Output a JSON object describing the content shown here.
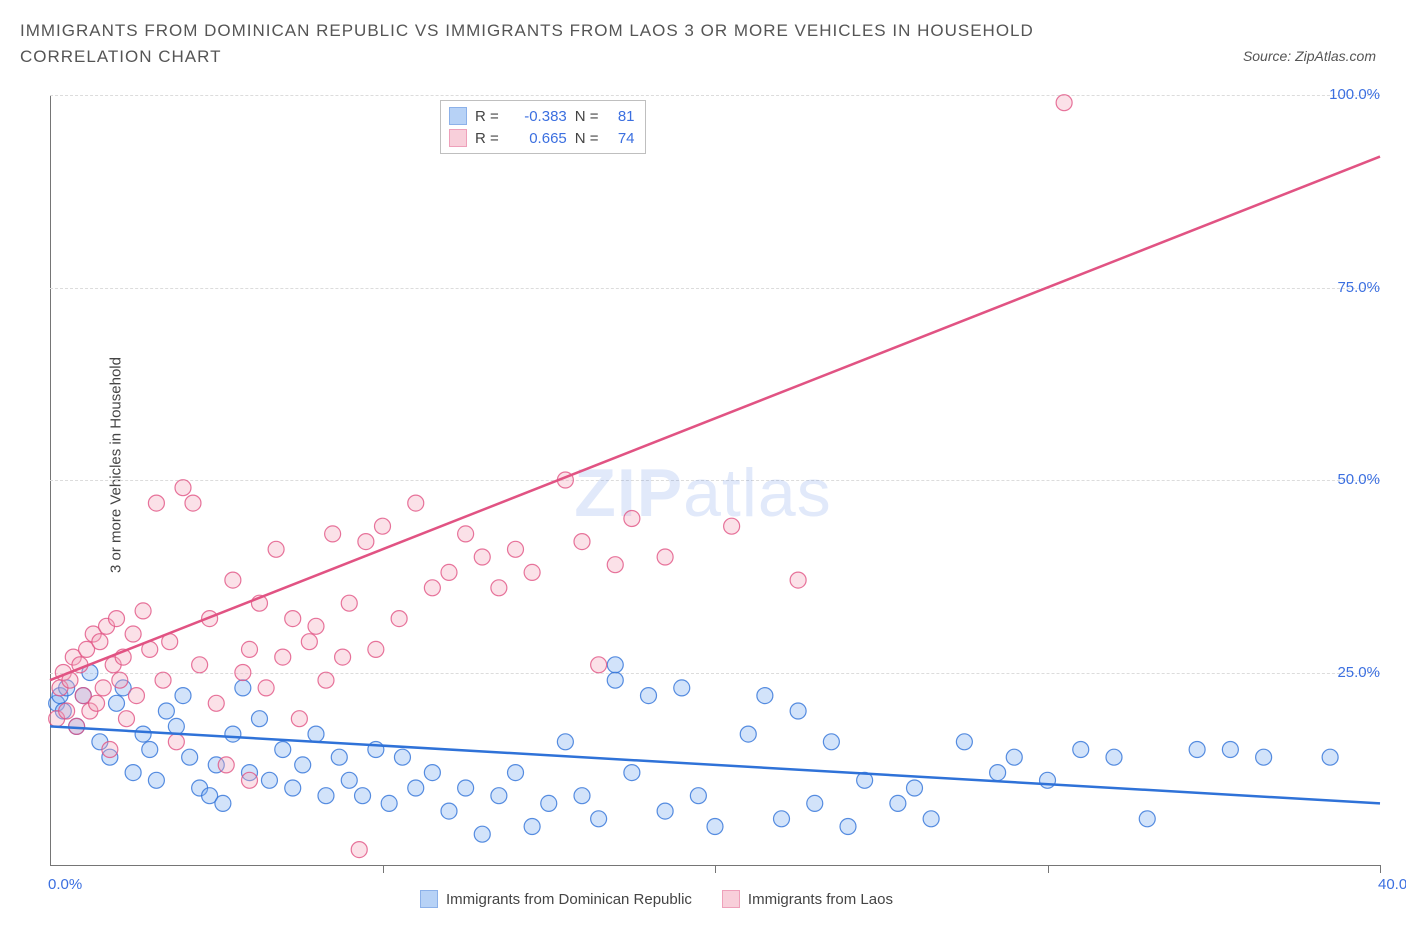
{
  "title": "IMMIGRANTS FROM DOMINICAN REPUBLIC VS IMMIGRANTS FROM LAOS 3 OR MORE VEHICLES IN HOUSEHOLD CORRELATION CHART",
  "source": "Source: ZipAtlas.com",
  "y_axis_label": "3 or more Vehicles in Household",
  "watermark": {
    "bold": "ZIP",
    "rest": "atlas"
  },
  "chart": {
    "type": "scatter",
    "xlim": [
      0,
      40
    ],
    "ylim": [
      0,
      100
    ],
    "y_ticks": [
      25,
      50,
      75,
      100
    ],
    "y_tick_labels": [
      "25.0%",
      "50.0%",
      "75.0%",
      "100.0%"
    ],
    "x_ticks": [
      0,
      10,
      20,
      30,
      40
    ],
    "x_tick_labels": [
      "0.0%",
      "",
      "",
      "",
      "40.0%"
    ],
    "grid_color": "#dcdcdc",
    "axis_color": "#757575",
    "background": "#ffffff",
    "point_radius": 8,
    "series": [
      {
        "name": "Immigrants from Dominican Republic",
        "fill": "#7eaef0",
        "stroke": "#2f72d8",
        "regression": {
          "x1": 0,
          "y1": 18,
          "x2": 40,
          "y2": 8,
          "color": "#2f72d8",
          "width": 2.5
        },
        "R": -0.383,
        "N": 81,
        "points": [
          [
            0.2,
            21
          ],
          [
            0.3,
            22
          ],
          [
            0.4,
            20
          ],
          [
            0.5,
            23
          ],
          [
            0.8,
            18
          ],
          [
            1.0,
            22
          ],
          [
            1.2,
            25
          ],
          [
            1.5,
            16
          ],
          [
            1.8,
            14
          ],
          [
            2.0,
            21
          ],
          [
            2.2,
            23
          ],
          [
            2.5,
            12
          ],
          [
            2.8,
            17
          ],
          [
            3.0,
            15
          ],
          [
            3.2,
            11
          ],
          [
            3.5,
            20
          ],
          [
            3.8,
            18
          ],
          [
            4.0,
            22
          ],
          [
            4.2,
            14
          ],
          [
            4.5,
            10
          ],
          [
            4.8,
            9
          ],
          [
            5.0,
            13
          ],
          [
            5.2,
            8
          ],
          [
            5.5,
            17
          ],
          [
            5.8,
            23
          ],
          [
            6.0,
            12
          ],
          [
            6.3,
            19
          ],
          [
            6.6,
            11
          ],
          [
            7.0,
            15
          ],
          [
            7.3,
            10
          ],
          [
            7.6,
            13
          ],
          [
            8.0,
            17
          ],
          [
            8.3,
            9
          ],
          [
            8.7,
            14
          ],
          [
            9.0,
            11
          ],
          [
            9.4,
            9
          ],
          [
            9.8,
            15
          ],
          [
            10.2,
            8
          ],
          [
            10.6,
            14
          ],
          [
            11.0,
            10
          ],
          [
            11.5,
            12
          ],
          [
            12.0,
            7
          ],
          [
            12.5,
            10
          ],
          [
            13.0,
            4
          ],
          [
            13.5,
            9
          ],
          [
            14.0,
            12
          ],
          [
            14.5,
            5
          ],
          [
            15.0,
            8
          ],
          [
            15.5,
            16
          ],
          [
            16.0,
            9
          ],
          [
            16.5,
            6
          ],
          [
            17.0,
            24
          ],
          [
            17.0,
            26
          ],
          [
            17.5,
            12
          ],
          [
            18.0,
            22
          ],
          [
            18.5,
            7
          ],
          [
            19.0,
            23
          ],
          [
            19.5,
            9
          ],
          [
            20.0,
            5
          ],
          [
            21.0,
            17
          ],
          [
            21.5,
            22
          ],
          [
            22.0,
            6
          ],
          [
            22.5,
            20
          ],
          [
            23.0,
            8
          ],
          [
            23.5,
            16
          ],
          [
            24.0,
            5
          ],
          [
            24.5,
            11
          ],
          [
            25.5,
            8
          ],
          [
            26.0,
            10
          ],
          [
            26.5,
            6
          ],
          [
            27.5,
            16
          ],
          [
            28.5,
            12
          ],
          [
            29.0,
            14
          ],
          [
            30.0,
            11
          ],
          [
            31.0,
            15
          ],
          [
            32.0,
            14
          ],
          [
            33.0,
            6
          ],
          [
            34.5,
            15
          ],
          [
            35.5,
            15
          ],
          [
            36.5,
            14
          ],
          [
            38.5,
            14
          ]
        ]
      },
      {
        "name": "Immigrants from Laos",
        "fill": "#f4a8bd",
        "stroke": "#e15383",
        "regression": {
          "x1": 0,
          "y1": 24,
          "x2": 40,
          "y2": 92,
          "color": "#e15383",
          "width": 2.5
        },
        "R": 0.665,
        "N": 74,
        "points": [
          [
            0.2,
            19
          ],
          [
            0.3,
            23
          ],
          [
            0.4,
            25
          ],
          [
            0.5,
            20
          ],
          [
            0.6,
            24
          ],
          [
            0.7,
            27
          ],
          [
            0.8,
            18
          ],
          [
            0.9,
            26
          ],
          [
            1.0,
            22
          ],
          [
            1.1,
            28
          ],
          [
            1.2,
            20
          ],
          [
            1.3,
            30
          ],
          [
            1.4,
            21
          ],
          [
            1.5,
            29
          ],
          [
            1.6,
            23
          ],
          [
            1.7,
            31
          ],
          [
            1.8,
            15
          ],
          [
            1.9,
            26
          ],
          [
            2.0,
            32
          ],
          [
            2.1,
            24
          ],
          [
            2.2,
            27
          ],
          [
            2.3,
            19
          ],
          [
            2.5,
            30
          ],
          [
            2.6,
            22
          ],
          [
            2.8,
            33
          ],
          [
            3.0,
            28
          ],
          [
            3.2,
            47
          ],
          [
            3.4,
            24
          ],
          [
            3.6,
            29
          ],
          [
            3.8,
            16
          ],
          [
            4.0,
            49
          ],
          [
            4.3,
            47
          ],
          [
            4.5,
            26
          ],
          [
            4.8,
            32
          ],
          [
            5.0,
            21
          ],
          [
            5.3,
            13
          ],
          [
            5.5,
            37
          ],
          [
            5.8,
            25
          ],
          [
            6.0,
            28
          ],
          [
            6.0,
            11
          ],
          [
            6.3,
            34
          ],
          [
            6.5,
            23
          ],
          [
            6.8,
            41
          ],
          [
            7.0,
            27
          ],
          [
            7.3,
            32
          ],
          [
            7.5,
            19
          ],
          [
            7.8,
            29
          ],
          [
            8.0,
            31
          ],
          [
            8.3,
            24
          ],
          [
            8.5,
            43
          ],
          [
            8.8,
            27
          ],
          [
            9.0,
            34
          ],
          [
            9.3,
            2
          ],
          [
            9.5,
            42
          ],
          [
            9.8,
            28
          ],
          [
            10.0,
            44
          ],
          [
            10.5,
            32
          ],
          [
            11.0,
            47
          ],
          [
            11.5,
            36
          ],
          [
            12.0,
            38
          ],
          [
            12.5,
            43
          ],
          [
            13.0,
            40
          ],
          [
            13.5,
            36
          ],
          [
            14.0,
            41
          ],
          [
            14.5,
            38
          ],
          [
            15.5,
            50
          ],
          [
            16.0,
            42
          ],
          [
            16.5,
            26
          ],
          [
            17.0,
            39
          ],
          [
            17.5,
            45
          ],
          [
            18.5,
            40
          ],
          [
            20.5,
            44
          ],
          [
            22.5,
            37
          ],
          [
            30.5,
            99
          ]
        ]
      }
    ]
  },
  "stats_box": {
    "rows": [
      {
        "swatch_fill": "#7eaef0",
        "swatch_stroke": "#2f72d8",
        "R_label": "R =",
        "R": "-0.383",
        "N_label": "N =",
        "N": "81"
      },
      {
        "swatch_fill": "#f4a8bd",
        "swatch_stroke": "#e15383",
        "R_label": "R =",
        "R": "0.665",
        "N_label": "N =",
        "N": "74"
      }
    ]
  },
  "bottom_legend": [
    {
      "fill": "#7eaef0",
      "stroke": "#2f72d8",
      "label": "Immigrants from Dominican Republic"
    },
    {
      "fill": "#f4a8bd",
      "stroke": "#e15383",
      "label": "Immigrants from Laos"
    }
  ]
}
